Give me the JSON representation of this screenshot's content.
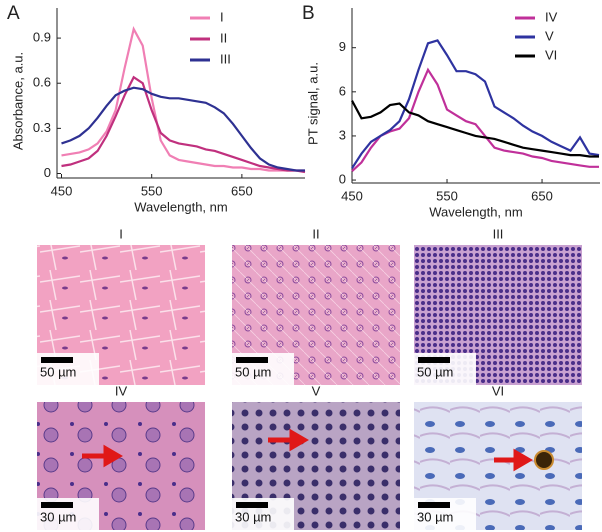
{
  "chart_data": [
    {
      "type": "line",
      "panel_label": "A",
      "ylabel": "Absorbance, a.u.",
      "xlabel": "Wavelength, nm",
      "x": [
        450,
        460,
        470,
        480,
        490,
        500,
        510,
        520,
        530,
        540,
        550,
        560,
        570,
        580,
        590,
        600,
        610,
        620,
        630,
        640,
        650,
        660,
        670,
        680,
        690,
        700,
        710,
        720
      ],
      "xlim": [
        445,
        720
      ],
      "ylim": [
        -0.03,
        1.1
      ],
      "xticks": [
        450,
        550,
        650
      ],
      "yticks": [
        0,
        0.3,
        0.6,
        0.9
      ],
      "legend": "top-center",
      "series": [
        {
          "name": "I",
          "color": "#f07fb4",
          "values": [
            0.12,
            0.13,
            0.14,
            0.16,
            0.2,
            0.28,
            0.42,
            0.7,
            0.96,
            0.85,
            0.5,
            0.22,
            0.12,
            0.09,
            0.08,
            0.07,
            0.06,
            0.05,
            0.05,
            0.04,
            0.04,
            0.03,
            0.03,
            0.02,
            0.02,
            0.02,
            0.02,
            0.02
          ]
        },
        {
          "name": "II",
          "color": "#c0307e",
          "values": [
            0.05,
            0.06,
            0.08,
            0.1,
            0.15,
            0.25,
            0.38,
            0.52,
            0.64,
            0.6,
            0.42,
            0.27,
            0.22,
            0.2,
            0.19,
            0.18,
            0.16,
            0.15,
            0.13,
            0.11,
            0.09,
            0.07,
            0.05,
            0.04,
            0.03,
            0.02,
            0.02,
            0.01
          ]
        },
        {
          "name": "III",
          "color": "#2e3192",
          "values": [
            0.2,
            0.22,
            0.25,
            0.3,
            0.37,
            0.45,
            0.52,
            0.55,
            0.57,
            0.56,
            0.53,
            0.51,
            0.5,
            0.5,
            0.49,
            0.48,
            0.47,
            0.44,
            0.4,
            0.33,
            0.25,
            0.17,
            0.1,
            0.06,
            0.04,
            0.03,
            0.02,
            0.02
          ]
        }
      ]
    },
    {
      "type": "line",
      "panel_label": "B",
      "ylabel": "PT signal, a.u.",
      "xlabel": "Wavelength, nm",
      "x": [
        450,
        460,
        470,
        480,
        490,
        500,
        510,
        520,
        530,
        540,
        550,
        560,
        570,
        580,
        590,
        600,
        610,
        620,
        630,
        640,
        650,
        660,
        670,
        680,
        690,
        700,
        710
      ],
      "xlim": [
        450,
        711
      ],
      "ylim": [
        -0.2,
        11.7
      ],
      "xticks": [
        450,
        550,
        650
      ],
      "yticks": [
        0,
        3,
        6,
        9
      ],
      "legend": "top-right",
      "series": [
        {
          "name": "IV",
          "color": "#c0309a",
          "values": [
            0.6,
            1.2,
            2.2,
            3.0,
            3.3,
            3.5,
            4.2,
            6,
            7.5,
            6.5,
            4.8,
            4.4,
            4.0,
            3.8,
            3.0,
            2.2,
            2.0,
            1.9,
            1.8,
            1.6,
            1.5,
            1.3,
            1.2,
            1.1,
            1.0,
            0.9,
            0.9
          ]
        },
        {
          "name": "V",
          "color": "#2e33a0",
          "values": [
            0.8,
            1.8,
            2.6,
            3.0,
            3.4,
            4.0,
            5.5,
            7.5,
            9.3,
            9.5,
            8.5,
            7.4,
            7.4,
            7.2,
            6.7,
            5.0,
            4.6,
            4.2,
            3.7,
            3.3,
            3.0,
            2.6,
            2.3,
            2.0,
            2.9,
            1.8,
            1.7
          ]
        },
        {
          "name": "VI",
          "color": "#000000",
          "values": [
            5.4,
            4.2,
            4.3,
            4.6,
            5.1,
            5.2,
            4.6,
            4.4,
            4.0,
            3.8,
            3.6,
            3.4,
            3.2,
            3.0,
            2.9,
            2.8,
            2.6,
            2.4,
            2.2,
            2.1,
            2.0,
            1.9,
            1.8,
            1.7,
            1.7,
            1.6,
            1.6
          ]
        }
      ]
    }
  ],
  "images": [
    {
      "label": "I",
      "scale_bar": "50 µm"
    },
    {
      "label": "II",
      "scale_bar": "50 µm"
    },
    {
      "label": "III",
      "scale_bar": "50 µm"
    },
    {
      "label": "IV",
      "scale_bar": "30 µm"
    },
    {
      "label": "V",
      "scale_bar": "30 µm"
    },
    {
      "label": "VI",
      "scale_bar": "30 µm"
    }
  ]
}
